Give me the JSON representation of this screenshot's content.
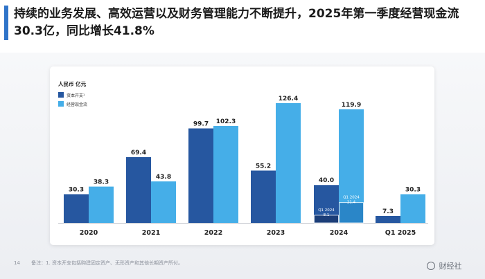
{
  "slide": {
    "title": "持续的业务发展、高效运营以及财务管理能力不断提升，2025年第一季度经营现金流30.3亿，同比增长41.8%",
    "footnote_page": "14",
    "footnote": "备注：1. 资本开支包括购建固定资产、无形资产和其他长期资产所付。",
    "watermark": "财经社",
    "accent_color": "#2f74c9"
  },
  "chart_data": {
    "type": "bar",
    "unit": "人民币 亿元",
    "categories": [
      "2020",
      "2021",
      "2022",
      "2023",
      "2024",
      "Q1 2025"
    ],
    "series": [
      {
        "name": "资本开支¹",
        "color": "#2657a0",
        "values": [
          30.3,
          69.4,
          99.7,
          55.2,
          40.0,
          7.3
        ]
      },
      {
        "name": "经营现金流",
        "color": "#45aee8",
        "values": [
          38.3,
          43.8,
          102.3,
          126.4,
          119.9,
          30.3
        ]
      }
    ],
    "annotations": [
      {
        "category": "2024",
        "series": "资本开支¹",
        "label": "Q1 2024",
        "value": 8.1
      },
      {
        "category": "2024",
        "series": "经营现金流",
        "label": "Q1 2024",
        "value": 21.4
      }
    ],
    "ylim": [
      0,
      130
    ],
    "grid": false,
    "legend": "top-left"
  }
}
